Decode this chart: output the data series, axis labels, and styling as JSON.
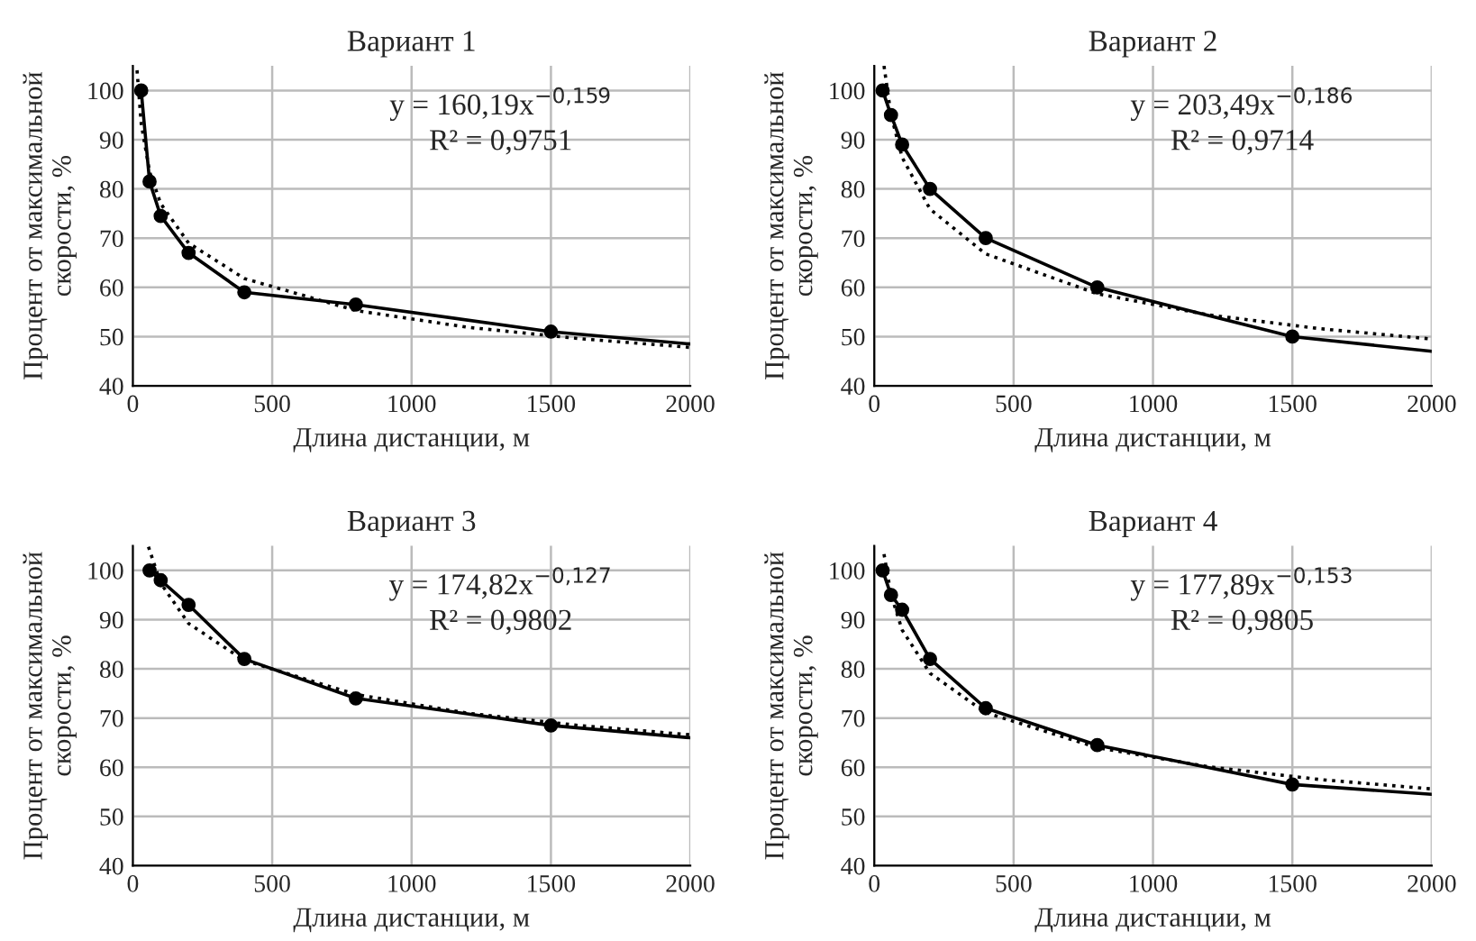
{
  "chart_data": [
    {
      "type": "line",
      "title": "Вариант 1",
      "xlabel": "Длина дистанции, м",
      "ylabel": "Процент от максимальной\nскорости, %",
      "xlim": [
        0,
        2000
      ],
      "xticks": [
        0,
        500,
        1000,
        1500,
        2000
      ],
      "ylim": [
        40,
        105
      ],
      "yticks": [
        40,
        50,
        60,
        70,
        80,
        90,
        100
      ],
      "grid": true,
      "annotations": [
        "y = 160,19x$^{−0,159}$",
        "R² = 0,9751"
      ],
      "series": [
        {
          "type": "line",
          "color": "#000000",
          "line_style": "solid",
          "marker": "none",
          "x": [
            30,
            60,
            100,
            200,
            400,
            800,
            1500,
            2000
          ],
          "values": [
            100,
            81.5,
            74.5,
            67,
            59,
            56.5,
            51,
            48.5
          ]
        },
        {
          "type": "scatter",
          "color": "#000000",
          "marker": "circle",
          "x": [
            30,
            60,
            100,
            200,
            400,
            800,
            1500
          ],
          "values": [
            100,
            81.5,
            74.5,
            67,
            59,
            56.5,
            51
          ]
        },
        {
          "type": "line",
          "color": "#000000",
          "line_style": "dotted",
          "marker": "none",
          "x": [
            15,
            30,
            60,
            100,
            200,
            400,
            800,
            1200,
            1600,
            2000
          ],
          "values": [
            104.1,
            93.3,
            83.5,
            77.0,
            69.0,
            61.8,
            55.3,
            51.9,
            49.6,
            47.8
          ]
        }
      ]
    },
    {
      "type": "line",
      "title": "Вариант 2",
      "xlabel": "Длина дистанции, м",
      "ylabel": "Процент от максимальной\nскорости, %",
      "xlim": [
        0,
        2000
      ],
      "xticks": [
        0,
        500,
        1000,
        1500,
        2000
      ],
      "ylim": [
        40,
        105
      ],
      "yticks": [
        40,
        50,
        60,
        70,
        80,
        90,
        100
      ],
      "grid": true,
      "annotations": [
        "y = 203,49x$^{−0,186}$",
        "R² = 0,9714"
      ],
      "series": [
        {
          "type": "line",
          "color": "#000000",
          "line_style": "solid",
          "marker": "none",
          "x": [
            30,
            60,
            100,
            200,
            400,
            800,
            1500,
            2000
          ],
          "values": [
            100,
            95,
            89,
            80,
            70,
            60,
            50,
            47
          ]
        },
        {
          "type": "scatter",
          "color": "#000000",
          "marker": "circle",
          "x": [
            30,
            60,
            100,
            200,
            400,
            800,
            1500
          ],
          "values": [
            100,
            95,
            89,
            80,
            70,
            60,
            50
          ]
        },
        {
          "type": "line",
          "color": "#000000",
          "line_style": "dotted",
          "marker": "none",
          "x": [
            35,
            60,
            100,
            200,
            400,
            800,
            1200,
            1600,
            2000
          ],
          "values": [
            105.0,
            95.0,
            86.4,
            75.9,
            66.8,
            58.7,
            54.4,
            51.6,
            49.5
          ]
        }
      ]
    },
    {
      "type": "line",
      "title": "Вариант 3",
      "xlabel": "Длина дистанции, м",
      "ylabel": "Процент от максимальной\nскорости, %",
      "xlim": [
        0,
        2000
      ],
      "xticks": [
        0,
        500,
        1000,
        1500,
        2000
      ],
      "ylim": [
        40,
        105
      ],
      "yticks": [
        40,
        50,
        60,
        70,
        80,
        90,
        100
      ],
      "grid": true,
      "annotations": [
        "y = 174,82x$^{−0,127}$",
        "R² = 0,9802"
      ],
      "series": [
        {
          "type": "line",
          "color": "#000000",
          "line_style": "solid",
          "marker": "none",
          "x": [
            60,
            100,
            200,
            400,
            800,
            1500,
            2000
          ],
          "values": [
            100,
            98,
            93,
            82,
            74,
            68.5,
            66
          ]
        },
        {
          "type": "scatter",
          "color": "#000000",
          "marker": "circle",
          "x": [
            60,
            100,
            200,
            400,
            800,
            1500
          ],
          "values": [
            100,
            98,
            93,
            82,
            74,
            68.5
          ]
        },
        {
          "type": "line",
          "color": "#000000",
          "line_style": "dotted",
          "marker": "none",
          "x": [
            56,
            100,
            200,
            400,
            800,
            1200,
            1600,
            2000
          ],
          "values": [
            104.8,
            97.4,
            89.2,
            81.7,
            74.8,
            71.0,
            68.5,
            66.6
          ]
        }
      ]
    },
    {
      "type": "line",
      "title": "Вариант 4",
      "xlabel": "Длина дистанции, м",
      "ylabel": "Процент от максимальной\nскорости, %",
      "xlim": [
        0,
        2000
      ],
      "xticks": [
        0,
        500,
        1000,
        1500,
        2000
      ],
      "ylim": [
        40,
        105
      ],
      "yticks": [
        40,
        50,
        60,
        70,
        80,
        90,
        100
      ],
      "grid": true,
      "annotations": [
        "y = 177,89x$^{−0,153}$",
        "R² = 0,9805"
      ],
      "series": [
        {
          "type": "line",
          "color": "#000000",
          "line_style": "solid",
          "marker": "none",
          "x": [
            30,
            60,
            100,
            200,
            400,
            800,
            1500,
            2000
          ],
          "values": [
            100,
            95,
            92,
            82,
            72,
            64.5,
            56.5,
            54.5
          ]
        },
        {
          "type": "scatter",
          "color": "#000000",
          "marker": "circle",
          "x": [
            30,
            60,
            100,
            200,
            400,
            800,
            1500
          ],
          "values": [
            100,
            95,
            92,
            82,
            72,
            64.5,
            56.5
          ]
        },
        {
          "type": "line",
          "color": "#000000",
          "line_style": "dotted",
          "marker": "none",
          "x": [
            35,
            60,
            100,
            200,
            400,
            800,
            1200,
            1600,
            2000
          ],
          "values": [
            103.3,
            95.1,
            87.9,
            79.1,
            71.1,
            64.0,
            60.1,
            57.5,
            55.6
          ]
        }
      ]
    }
  ]
}
